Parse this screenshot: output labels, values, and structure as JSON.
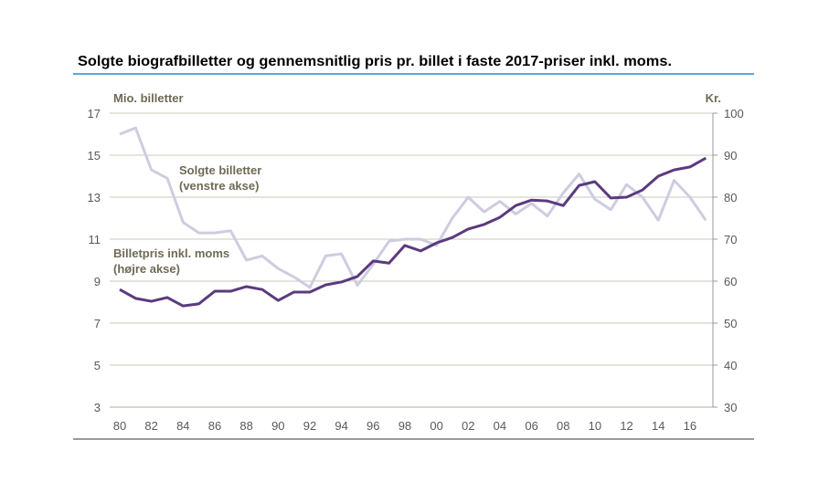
{
  "chart_data": {
    "type": "line",
    "title": "Solgte biografbilletter og gennemsnitlig pris pr. billet i faste 2017-priser inkl. moms.",
    "ylabel_left": "Mio. billetter",
    "ylabel_right": "Kr.",
    "ylim_left": [
      3,
      17
    ],
    "ylim_right": [
      30,
      100
    ],
    "yticks_left": [
      "3",
      "5",
      "7",
      "9",
      "11",
      "13",
      "15",
      "17"
    ],
    "yticks_right": [
      "30",
      "40",
      "50",
      "60",
      "70",
      "80",
      "90",
      "100"
    ],
    "xticks": [
      "80",
      "82",
      "84",
      "86",
      "88",
      "90",
      "92",
      "94",
      "96",
      "98",
      "00",
      "02",
      "04",
      "06",
      "08",
      "10",
      "12",
      "14",
      "16"
    ],
    "grid": true,
    "x": [
      1980,
      1981,
      1982,
      1983,
      1984,
      1985,
      1986,
      1987,
      1988,
      1989,
      1990,
      1991,
      1992,
      1993,
      1994,
      1995,
      1996,
      1997,
      1998,
      1999,
      2000,
      2001,
      2002,
      2003,
      2004,
      2005,
      2006,
      2007,
      2008,
      2009,
      2010,
      2011,
      2012,
      2013,
      2014,
      2015,
      2016,
      2017
    ],
    "series": [
      {
        "name": "Solgte billetter (venstre akse)",
        "name_line1": "Solgte billetter",
        "name_line2": "(venstre akse)",
        "axis": "left",
        "color": "#cfcce0",
        "values": [
          16.0,
          16.3,
          14.3,
          13.9,
          11.8,
          11.3,
          11.3,
          11.4,
          10.0,
          10.2,
          9.6,
          9.2,
          8.7,
          10.2,
          10.3,
          8.8,
          9.8,
          10.9,
          11.0,
          11.0,
          10.7,
          12.0,
          13.0,
          12.3,
          12.8,
          12.2,
          12.7,
          12.1,
          13.2,
          14.1,
          12.9,
          12.4,
          13.6,
          13.0,
          11.9,
          13.8,
          13.0,
          11.9
        ]
      },
      {
        "name": "Billetpris inkl. moms (højre akse)",
        "name_line1": "Billetpris inkl. moms",
        "name_line2": "(højre akse)",
        "axis": "right",
        "color": "#5b3a7e",
        "values": [
          58.0,
          55.9,
          55.2,
          56.1,
          54.1,
          54.6,
          57.6,
          57.6,
          58.7,
          58.0,
          55.4,
          57.4,
          57.4,
          59.1,
          59.8,
          61.1,
          64.8,
          64.3,
          68.5,
          67.2,
          69.1,
          70.4,
          72.4,
          73.5,
          75.2,
          78.0,
          79.3,
          79.1,
          78.0,
          82.8,
          83.7,
          79.8,
          80.0,
          81.7,
          85.0,
          86.5,
          87.2,
          89.3
        ]
      }
    ]
  }
}
